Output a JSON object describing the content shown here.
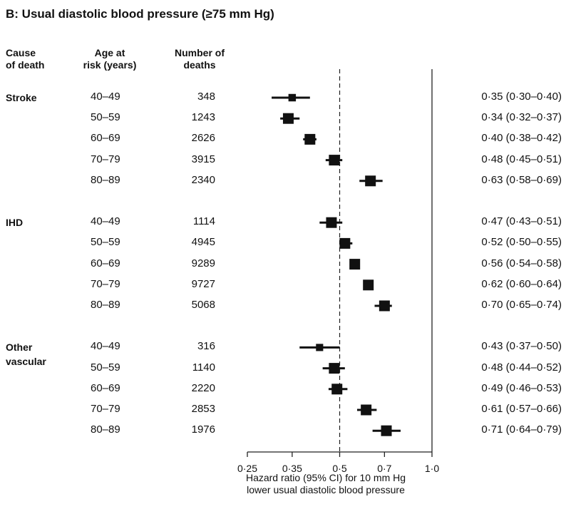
{
  "chart_data": {
    "type": "forest",
    "title": "B: Usual diastolic blood pressure (≥75 mm Hg)",
    "column_headers": {
      "cause": "Cause\nof death",
      "age": "Age at\nrisk (years)",
      "deaths": "Number of\ndeaths"
    },
    "xlabel": "Hazard ratio (95% CI) for 10 mm Hg\nlower usual diastolic blood pressure",
    "x_scale": "log",
    "xlim": [
      0.25,
      1.0
    ],
    "x_ticks": [
      0.25,
      0.35,
      0.5,
      0.7,
      1.0
    ],
    "x_tick_labels": [
      "0·25",
      "0·35",
      "0·5",
      "0·7",
      "1·0"
    ],
    "reference_line": 0.5,
    "null_line": 1.0,
    "groups": [
      {
        "cause": "Stroke",
        "rows": [
          {
            "age": "40–49",
            "deaths": "348",
            "hr": 0.35,
            "lo": 0.3,
            "hi": 0.4,
            "label": "0·35 (0·30–0·40)"
          },
          {
            "age": "50–59",
            "deaths": "1243",
            "hr": 0.34,
            "lo": 0.32,
            "hi": 0.37,
            "label": "0·34 (0·32–0·37)"
          },
          {
            "age": "60–69",
            "deaths": "2626",
            "hr": 0.4,
            "lo": 0.38,
            "hi": 0.42,
            "label": "0·40 (0·38–0·42)"
          },
          {
            "age": "70–79",
            "deaths": "3915",
            "hr": 0.48,
            "lo": 0.45,
            "hi": 0.51,
            "label": "0·48 (0·45–0·51)"
          },
          {
            "age": "80–89",
            "deaths": "2340",
            "hr": 0.63,
            "lo": 0.58,
            "hi": 0.69,
            "label": "0·63 (0·58–0·69)"
          }
        ]
      },
      {
        "cause": "IHD",
        "rows": [
          {
            "age": "40–49",
            "deaths": "1114",
            "hr": 0.47,
            "lo": 0.43,
            "hi": 0.51,
            "label": "0·47 (0·43–0·51)"
          },
          {
            "age": "50–59",
            "deaths": "4945",
            "hr": 0.52,
            "lo": 0.5,
            "hi": 0.55,
            "label": "0·52 (0·50–0·55)"
          },
          {
            "age": "60–69",
            "deaths": "9289",
            "hr": 0.56,
            "lo": 0.54,
            "hi": 0.58,
            "label": "0·56 (0·54–0·58)"
          },
          {
            "age": "70–79",
            "deaths": "9727",
            "hr": 0.62,
            "lo": 0.6,
            "hi": 0.64,
            "label": "0·62 (0·60–0·64)"
          },
          {
            "age": "80–89",
            "deaths": "5068",
            "hr": 0.7,
            "lo": 0.65,
            "hi": 0.74,
            "label": "0·70 (0·65–0·74)"
          }
        ]
      },
      {
        "cause": "Other\nvascular",
        "rows": [
          {
            "age": "40–49",
            "deaths": "316",
            "hr": 0.43,
            "lo": 0.37,
            "hi": 0.5,
            "label": "0·43 (0·37–0·50)"
          },
          {
            "age": "50–59",
            "deaths": "1140",
            "hr": 0.48,
            "lo": 0.44,
            "hi": 0.52,
            "label": "0·48 (0·44–0·52)"
          },
          {
            "age": "60–69",
            "deaths": "2220",
            "hr": 0.49,
            "lo": 0.46,
            "hi": 0.53,
            "label": "0·49 (0·46–0·53)"
          },
          {
            "age": "70–79",
            "deaths": "2853",
            "hr": 0.61,
            "lo": 0.57,
            "hi": 0.66,
            "label": "0·61 (0·57–0·66)"
          },
          {
            "age": "80–89",
            "deaths": "1976",
            "hr": 0.71,
            "lo": 0.64,
            "hi": 0.79,
            "label": "0·71 (0·64–0·79)"
          }
        ]
      }
    ]
  }
}
